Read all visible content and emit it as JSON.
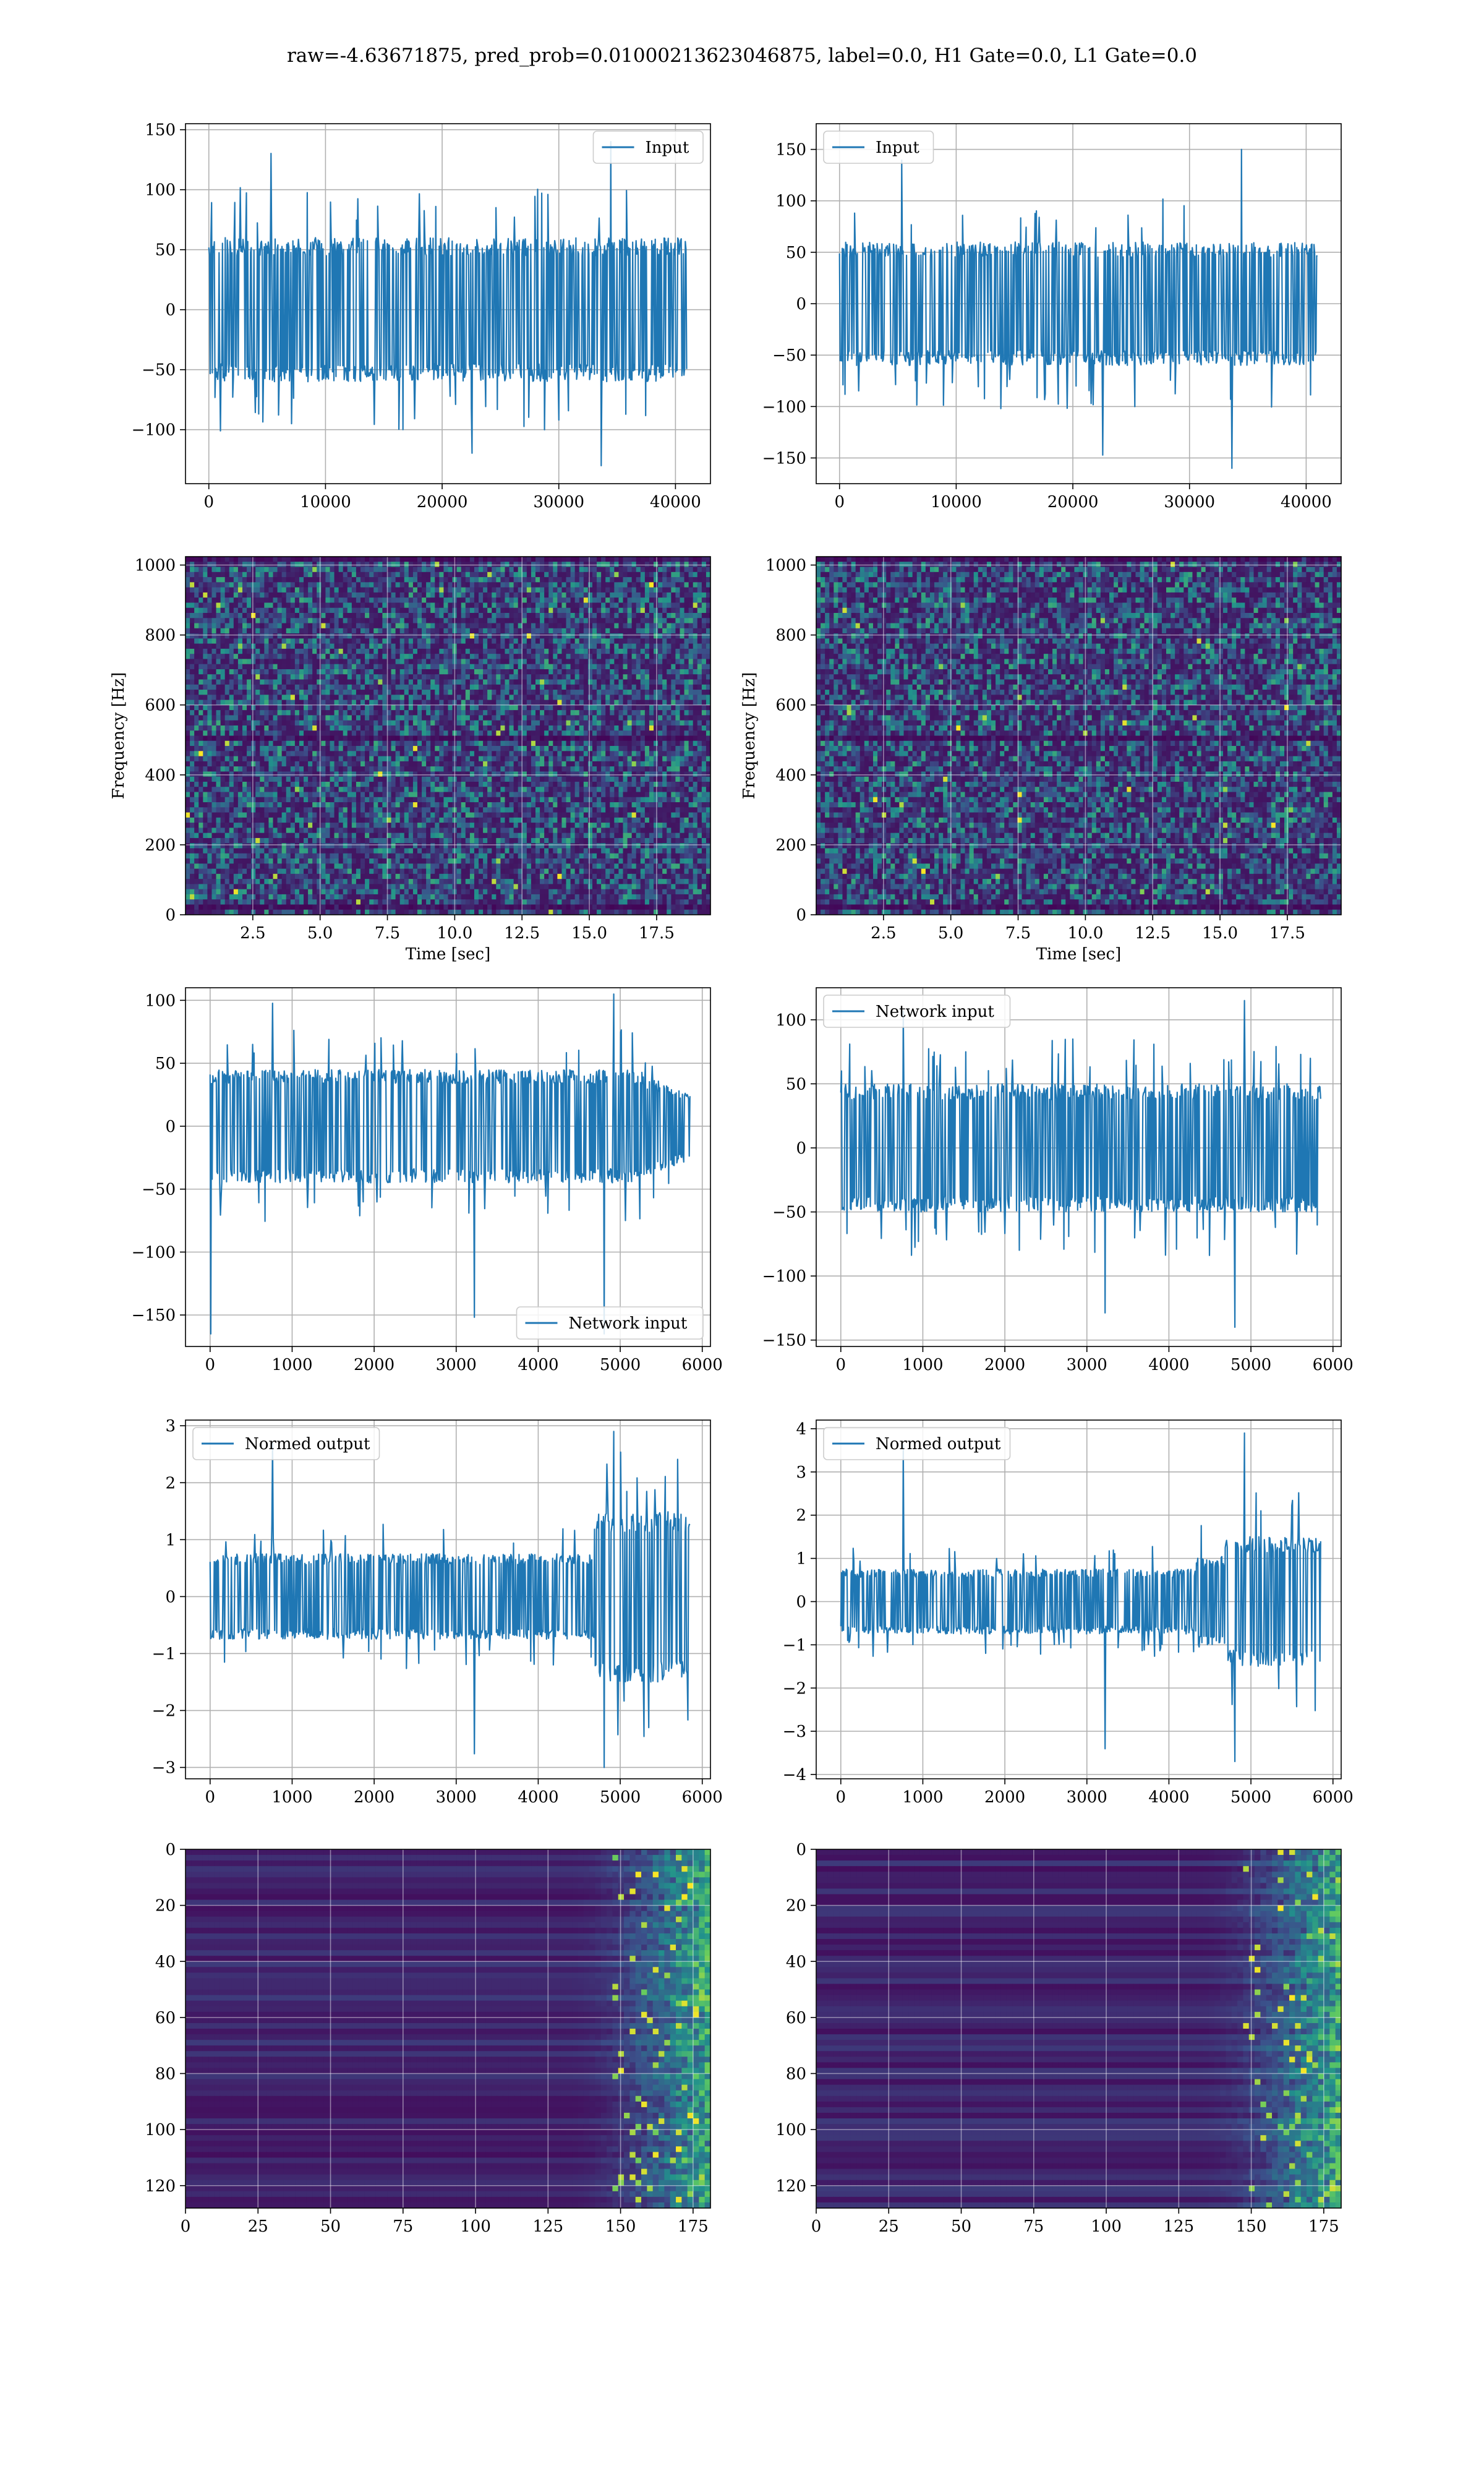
{
  "figure": {
    "suptitle": "raw=-4.63671875, pred_prob=0.01000213623046875, label=0.0, H1 Gate=0.0, L1 Gate=0.0"
  },
  "colors": {
    "series": "#1f77b4",
    "grid": "#b0b0b0",
    "viridis": [
      "#440154",
      "#3b528b",
      "#21918c",
      "#5ec962",
      "#fde725"
    ]
  },
  "chart_data": [
    {
      "id": "input-h1",
      "type": "line",
      "xlim": [
        -2000,
        43000
      ],
      "ylim": [
        -145,
        155
      ],
      "xticks": [
        0,
        10000,
        20000,
        30000,
        40000
      ],
      "xtick_labels": [
        "0",
        "10000",
        "20000",
        "30000",
        "40000"
      ],
      "yticks": [
        -100,
        -50,
        0,
        50,
        100,
        150
      ],
      "ytick_labels": [
        "−100",
        "−50",
        "0",
        "50",
        "100",
        "150"
      ],
      "legend": "upper right",
      "grid": true,
      "series": [
        {
          "name": "Input",
          "x_start": 0,
          "x_end": 40960,
          "points": 700,
          "band": 60,
          "spike_max": 140,
          "spike_min": -130,
          "pattern": "flat"
        }
      ]
    },
    {
      "id": "input-l1",
      "type": "line",
      "xlim": [
        -2000,
        43000
      ],
      "ylim": [
        -175,
        175
      ],
      "xticks": [
        0,
        10000,
        20000,
        30000,
        40000
      ],
      "xtick_labels": [
        "0",
        "10000",
        "20000",
        "30000",
        "40000"
      ],
      "yticks": [
        -150,
        -100,
        -50,
        0,
        50,
        100,
        150
      ],
      "ytick_labels": [
        "−150",
        "−100",
        "−50",
        "0",
        "50",
        "100",
        "150"
      ],
      "legend": "upper left",
      "grid": true,
      "series": [
        {
          "name": "Input",
          "x_start": 0,
          "x_end": 40960,
          "points": 700,
          "band": 60,
          "spike_max": 150,
          "spike_min": -160,
          "pattern": "flat"
        }
      ]
    },
    {
      "id": "spectrogram-h1",
      "type": "heatmap",
      "xlim": [
        0.0,
        19.5
      ],
      "ylim": [
        0,
        1024
      ],
      "xticks": [
        2.5,
        5.0,
        7.5,
        10.0,
        12.5,
        15.0,
        17.5
      ],
      "xtick_labels": [
        "2.5",
        "5.0",
        "7.5",
        "10.0",
        "12.5",
        "15.0",
        "17.5"
      ],
      "yticks": [
        0,
        200,
        400,
        600,
        800,
        1000
      ],
      "ytick_labels": [
        "0",
        "200",
        "400",
        "600",
        "800",
        "1000"
      ],
      "xlabel": "Time [sec]",
      "ylabel": "Frequency [Hz]",
      "colormap": "viridis",
      "grid": true,
      "cols": 120,
      "rows": 70,
      "seed": 11,
      "dark_rows": [
        0,
        35,
        68
      ]
    },
    {
      "id": "spectrogram-l1",
      "type": "heatmap",
      "xlim": [
        0.0,
        19.5
      ],
      "ylim": [
        0,
        1024
      ],
      "xticks": [
        2.5,
        5.0,
        7.5,
        10.0,
        12.5,
        15.0,
        17.5
      ],
      "xtick_labels": [
        "2.5",
        "5.0",
        "7.5",
        "10.0",
        "12.5",
        "15.0",
        "17.5"
      ],
      "yticks": [
        0,
        200,
        400,
        600,
        800,
        1000
      ],
      "ytick_labels": [
        "0",
        "200",
        "400",
        "600",
        "800",
        "1000"
      ],
      "xlabel": "Time [sec]",
      "ylabel": "Frequency [Hz]",
      "colormap": "viridis",
      "grid": true,
      "cols": 120,
      "rows": 70,
      "seed": 23,
      "dark_rows": [
        0,
        35,
        68
      ]
    },
    {
      "id": "network-input-h1",
      "type": "line",
      "xlim": [
        -300,
        6100
      ],
      "ylim": [
        -175,
        110
      ],
      "xticks": [
        0,
        1000,
        2000,
        3000,
        4000,
        5000,
        6000
      ],
      "xtick_labels": [
        "0",
        "1000",
        "2000",
        "3000",
        "4000",
        "5000",
        "6000"
      ],
      "yticks": [
        -150,
        -100,
        -50,
        0,
        50,
        100
      ],
      "ytick_labels": [
        "−150",
        "−100",
        "−50",
        "0",
        "50",
        "100"
      ],
      "legend": "lower right",
      "grid": true,
      "series": [
        {
          "name": "Network input",
          "x_start": 0,
          "x_end": 5850,
          "points": 700,
          "band": 45,
          "spike_max": 105,
          "spike_min": -165,
          "pattern": "taper"
        }
      ]
    },
    {
      "id": "network-input-l1",
      "type": "line",
      "xlim": [
        -300,
        6100
      ],
      "ylim": [
        -155,
        125
      ],
      "xticks": [
        0,
        1000,
        2000,
        3000,
        4000,
        5000,
        6000
      ],
      "xtick_labels": [
        "0",
        "1000",
        "2000",
        "3000",
        "4000",
        "5000",
        "6000"
      ],
      "yticks": [
        -150,
        -100,
        -50,
        0,
        50,
        100
      ],
      "ytick_labels": [
        "−150",
        "−100",
        "−50",
        "0",
        "50",
        "100"
      ],
      "legend": "upper left",
      "grid": true,
      "series": [
        {
          "name": "Network input",
          "x_start": 0,
          "x_end": 5850,
          "points": 700,
          "band": 50,
          "spike_max": 115,
          "spike_min": -140,
          "pattern": "flat"
        }
      ]
    },
    {
      "id": "normed-output-h1",
      "type": "line",
      "xlim": [
        -300,
        6100
      ],
      "ylim": [
        -3.2,
        3.1
      ],
      "xticks": [
        0,
        1000,
        2000,
        3000,
        4000,
        5000,
        6000
      ],
      "xtick_labels": [
        "0",
        "1000",
        "2000",
        "3000",
        "4000",
        "5000",
        "6000"
      ],
      "yticks": [
        -3,
        -2,
        -1,
        0,
        1,
        2,
        3
      ],
      "ytick_labels": [
        "−3",
        "−2",
        "−1",
        "0",
        "1",
        "2",
        "3"
      ],
      "legend": "upper left",
      "grid": true,
      "series": [
        {
          "name": "Normed output",
          "x_start": 0,
          "x_end": 5850,
          "points": 700,
          "band": 0.75,
          "spike_max": 2.9,
          "spike_min": -3.0,
          "pattern": "burst-h1"
        }
      ]
    },
    {
      "id": "normed-output-l1",
      "type": "line",
      "xlim": [
        -300,
        6100
      ],
      "ylim": [
        -4.1,
        4.2
      ],
      "xticks": [
        0,
        1000,
        2000,
        3000,
        4000,
        5000,
        6000
      ],
      "xtick_labels": [
        "0",
        "1000",
        "2000",
        "3000",
        "4000",
        "5000",
        "6000"
      ],
      "yticks": [
        -4,
        -3,
        -2,
        -1,
        0,
        1,
        2,
        3,
        4
      ],
      "ytick_labels": [
        "−4",
        "−3",
        "−2",
        "−1",
        "0",
        "1",
        "2",
        "3",
        "4"
      ],
      "legend": "upper left",
      "grid": true,
      "series": [
        {
          "name": "Normed output",
          "x_start": 0,
          "x_end": 5850,
          "points": 700,
          "band": 0.75,
          "spike_max": 3.9,
          "spike_min": -3.7,
          "pattern": "burst-l1"
        }
      ]
    },
    {
      "id": "feature-map-h1",
      "type": "heatmap",
      "xlim": [
        0,
        181
      ],
      "ylim": [
        128,
        0
      ],
      "xticks": [
        0,
        25,
        50,
        75,
        100,
        125,
        150,
        175
      ],
      "xtick_labels": [
        "0",
        "25",
        "50",
        "75",
        "100",
        "125",
        "150",
        "175"
      ],
      "yticks": [
        0,
        20,
        40,
        60,
        80,
        100,
        120
      ],
      "ytick_labels": [
        "0",
        "20",
        "40",
        "60",
        "80",
        "100",
        "120"
      ],
      "colormap": "viridis",
      "grid": true,
      "cols": 91,
      "rows": 64,
      "seed": 5,
      "mode": "feature"
    },
    {
      "id": "feature-map-l1",
      "type": "heatmap",
      "xlim": [
        0,
        181
      ],
      "ylim": [
        128,
        0
      ],
      "xticks": [
        0,
        25,
        50,
        75,
        100,
        125,
        150,
        175
      ],
      "xtick_labels": [
        "0",
        "25",
        "50",
        "75",
        "100",
        "125",
        "150",
        "175"
      ],
      "yticks": [
        0,
        20,
        40,
        60,
        80,
        100,
        120
      ],
      "ytick_labels": [
        "0",
        "20",
        "40",
        "60",
        "80",
        "100",
        "120"
      ],
      "colormap": "viridis",
      "grid": true,
      "cols": 91,
      "rows": 64,
      "seed": 9,
      "mode": "feature"
    }
  ]
}
